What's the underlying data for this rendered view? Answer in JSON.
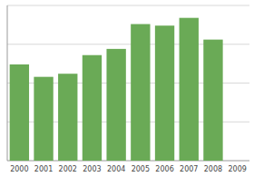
{
  "chart_data": {
    "type": "bar",
    "categories": [
      "2000",
      "2001",
      "2002",
      "2003",
      "2004",
      "2005",
      "2006",
      "2007",
      "2008",
      "2009"
    ],
    "values": [
      62,
      54,
      56,
      68,
      72,
      88,
      87,
      92,
      78,
      0
    ],
    "color": "#6aaa56",
    "ylim": [
      0,
      100
    ],
    "yticks": [
      25,
      50,
      75,
      100
    ],
    "grid": true,
    "tick_labels": "x"
  }
}
